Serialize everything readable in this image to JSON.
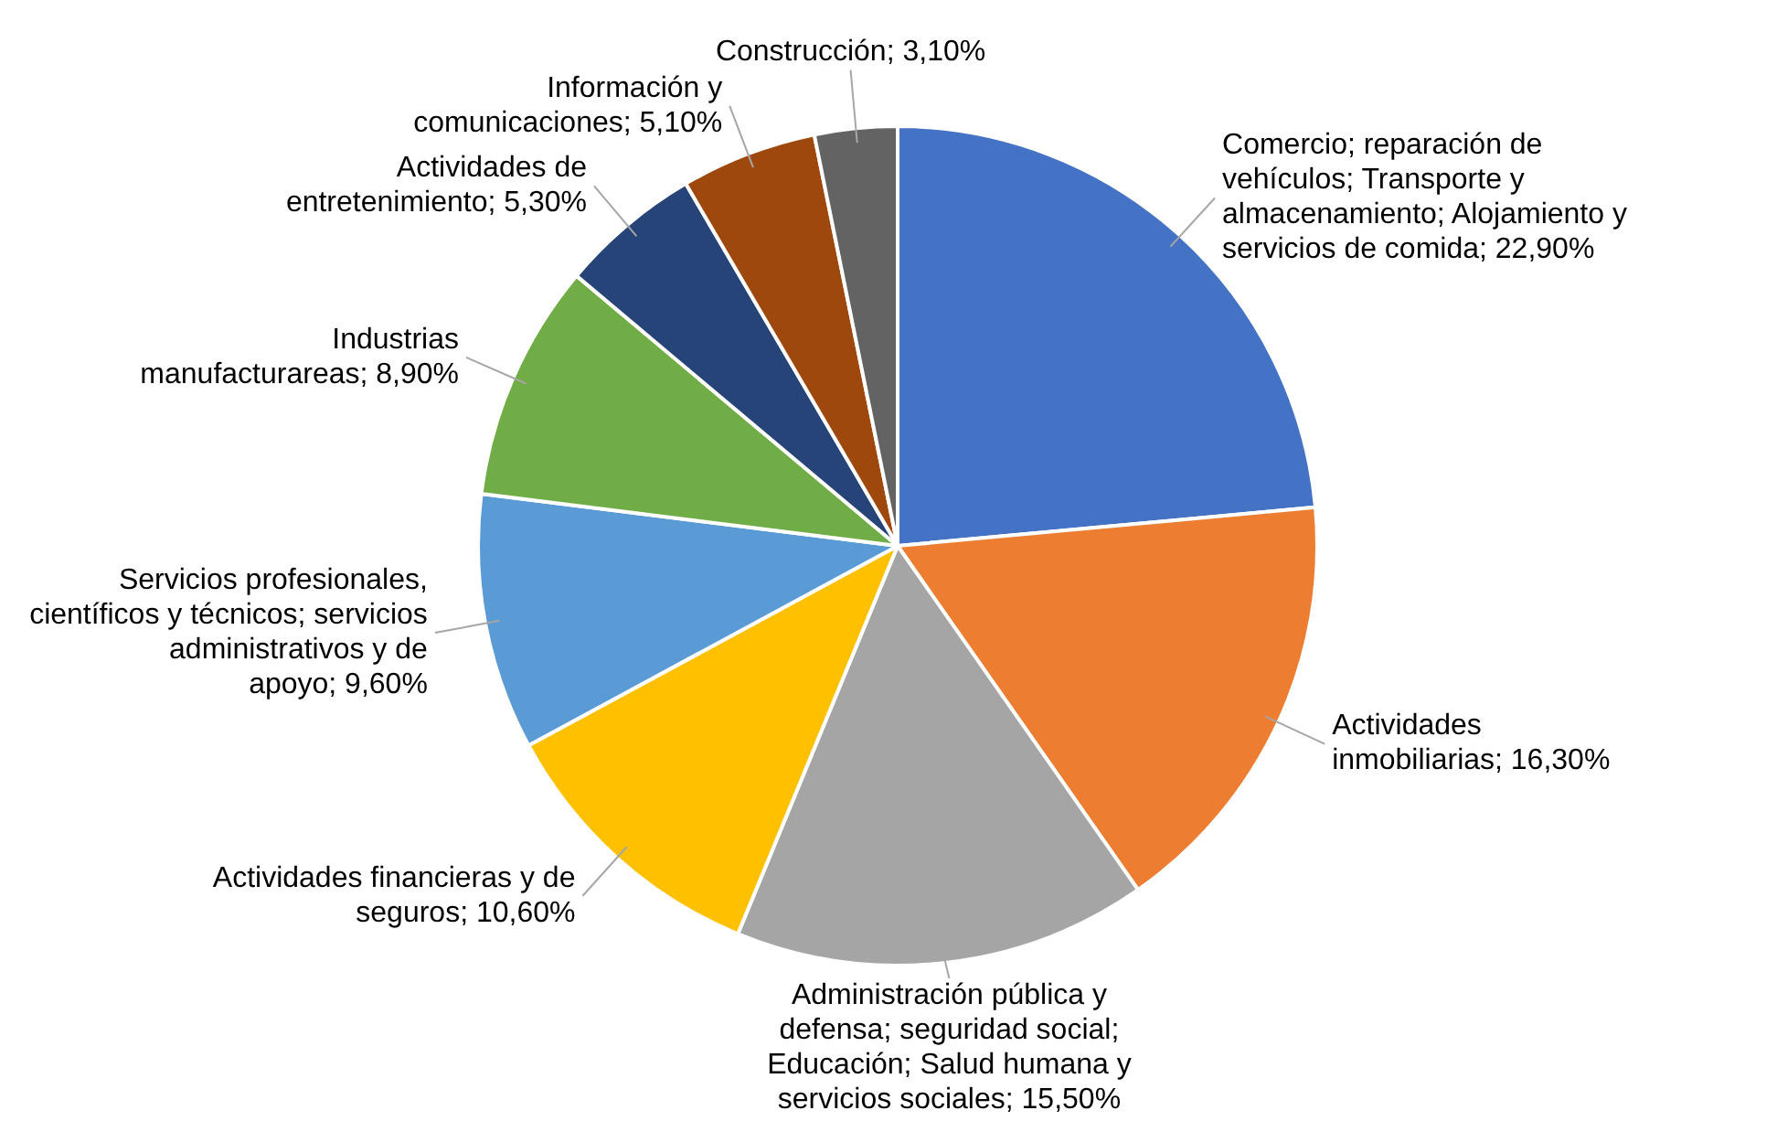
{
  "chart_data": {
    "type": "pie",
    "categories": [
      "Comercio; reparación de vehículos; Transporte y almacenamiento; Alojamiento y servicios de comida",
      "Actividades inmobiliarias",
      "Administración pública y defensa; seguridad social; Educación; Salud humana y servicios sociales",
      "Actividades financieras y de seguros",
      "Servicios profesionales, científicos y técnicos; servicios administrativos y de apoyo",
      "Industrias manufacturareas",
      "Actividades de entretenimiento",
      "Información y comunicaciones",
      "Construcción"
    ],
    "values": [
      22.9,
      16.3,
      15.5,
      10.6,
      9.6,
      8.9,
      5.3,
      5.1,
      3.1
    ],
    "value_labels": [
      "22,90%",
      "16,30%",
      "15,50%",
      "10,60%",
      "9,60%",
      "8,90%",
      "5,30%",
      "5,10%",
      "3,10%"
    ],
    "colors": [
      "#4472c4",
      "#ed7d31",
      "#a5a5a5",
      "#ffc000",
      "#5b9bd5",
      "#70ad47",
      "#264478",
      "#9e480e",
      "#636363"
    ],
    "legend": false
  }
}
